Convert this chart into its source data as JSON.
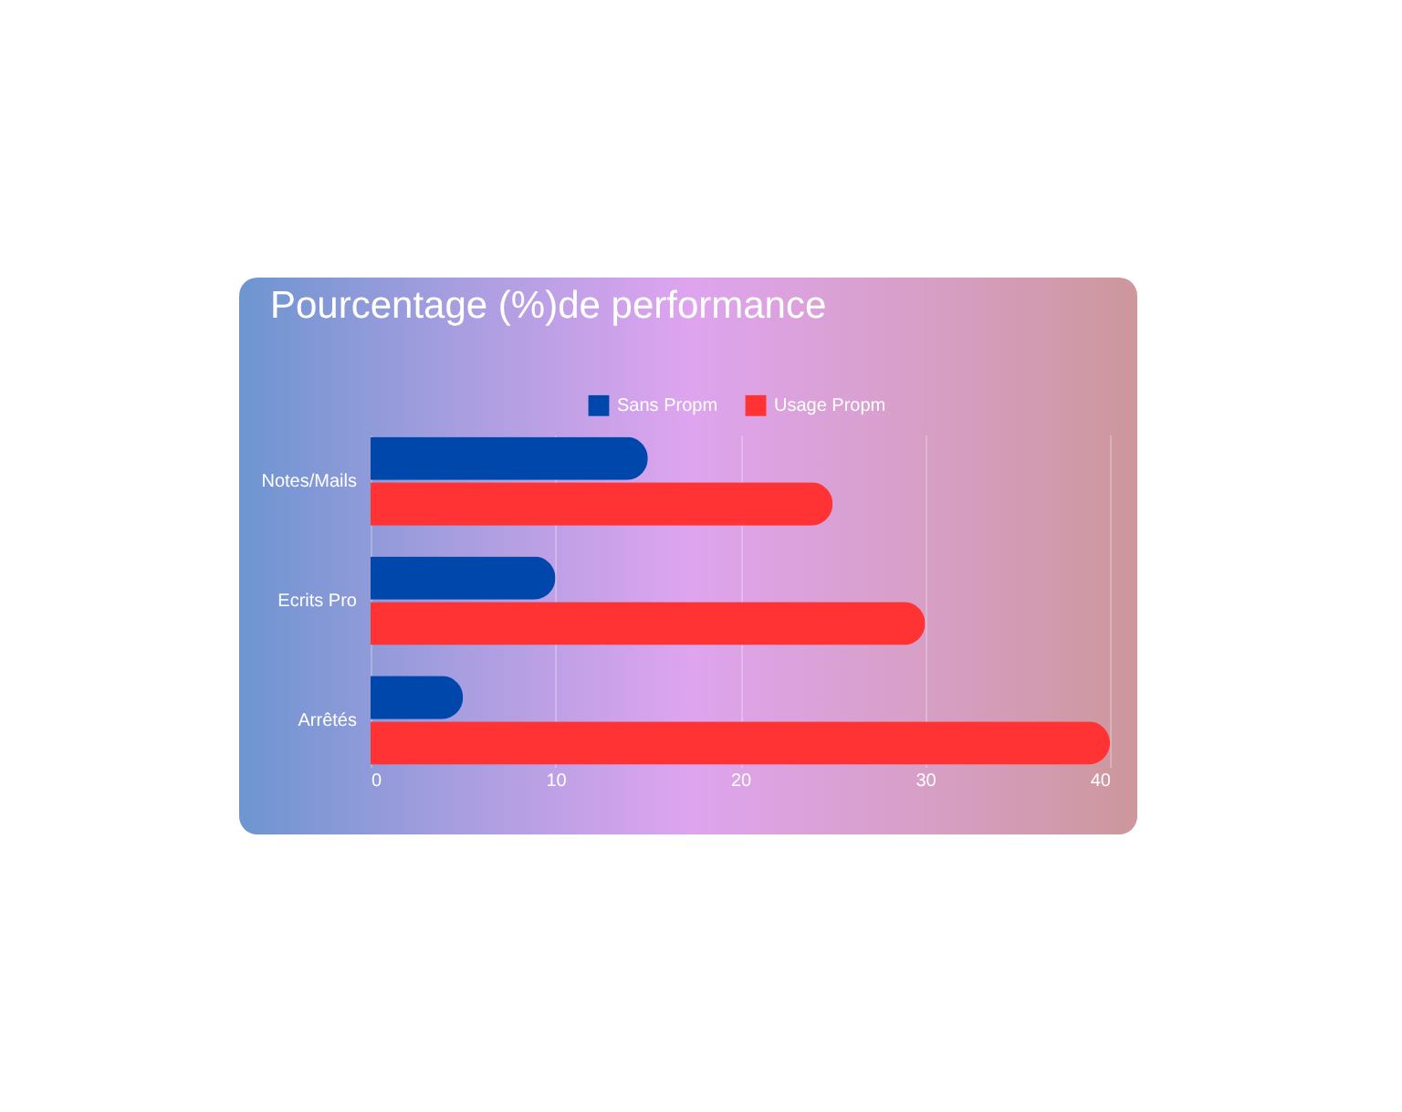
{
  "chart_data": {
    "type": "bar",
    "orientation": "horizontal",
    "title": "Pourcentage (%)de performance",
    "categories": [
      "Notes/Mails",
      "Ecrits Pro",
      "Arrêtés"
    ],
    "series": [
      {
        "name": "Sans Propm",
        "color": "#0047ab",
        "values": [
          15,
          10,
          5
        ]
      },
      {
        "name": "Usage Propm",
        "color": "#ff3333",
        "values": [
          25,
          30,
          40
        ]
      }
    ],
    "xlim": [
      0,
      40
    ],
    "xticks": [
      0,
      10,
      20,
      30,
      40
    ],
    "grid": "x",
    "legend": "top"
  }
}
